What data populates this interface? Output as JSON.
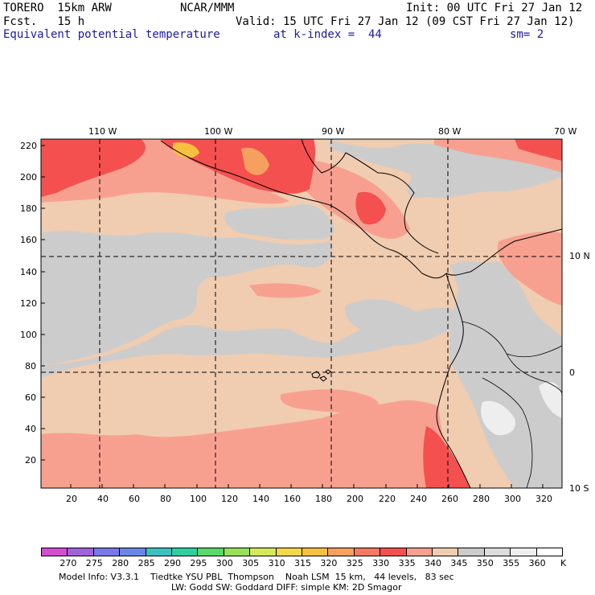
{
  "header": {
    "model": "TORERO  15km ARW",
    "org": "NCAR/MMM",
    "init": "Init: 00 UTC Fri 27 Jan 12",
    "fcst": "Fcst.   15 h",
    "valid": "Valid: 15 UTC Fri 27 Jan 12 (09 CST Fri 27 Jan 12)",
    "field": "Equivalent potential temperature",
    "level": "at k-index =  44",
    "smooth": "sm= 2"
  },
  "axes": {
    "top_lon": [
      "110 W",
      "100 W",
      "90 W",
      "80 W",
      "70 W"
    ],
    "right_lat": [
      "10 N",
      "0",
      "10 S"
    ],
    "left_y": [
      "220",
      "200",
      "180",
      "160",
      "140",
      "120",
      "100",
      "80",
      "60",
      "40",
      "20"
    ],
    "bottom_x": [
      "20",
      "40",
      "60",
      "80",
      "100",
      "120",
      "140",
      "160",
      "180",
      "200",
      "220",
      "240",
      "260",
      "280",
      "300",
      "320"
    ]
  },
  "legend": {
    "unit": "K",
    "labels": [
      "270",
      "275",
      "280",
      "285",
      "290",
      "295",
      "300",
      "305",
      "310",
      "315",
      "320",
      "325",
      "330",
      "335",
      "340",
      "345",
      "350",
      "355",
      "360"
    ],
    "colors": [
      "#d24fd2",
      "#a062d8",
      "#7878e8",
      "#6a86e6",
      "#3cc0c0",
      "#2fcf9f",
      "#5ad86a",
      "#96e05a",
      "#d4e85a",
      "#f4d84a",
      "#f8c040",
      "#f6a060",
      "#f47a64",
      "#f45050",
      "#f8a090",
      "#f0ccb0",
      "#cccccc",
      "#dcdcdc",
      "#eeeeee",
      "#ffffff"
    ]
  },
  "footer": {
    "line1": "Model Info: V3.3.1    Tiedtke YSU PBL  Thompson    Noah LSM  15 km,   44 levels,   83 sec",
    "line2": "LW: Godd SW: Goddard DIFF: simple KM: 2D Smagor"
  },
  "map_colors": {
    "base": "#f0ccb0",
    "gray": "#cccccc",
    "light": "#eeeeee",
    "salmon": "#f8a090",
    "red": "#f45050",
    "orange": "#f8c040",
    "peach": "#f6a060"
  }
}
